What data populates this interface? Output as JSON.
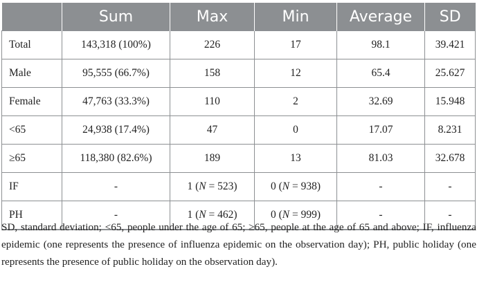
{
  "table": {
    "columns": [
      "",
      "Sum",
      "Max",
      "Min",
      "Average",
      "SD"
    ],
    "rows": [
      {
        "label": "Total",
        "sum": "143,318 (100%)",
        "max": "226",
        "min": "17",
        "average": "98.1",
        "sd": "39.421"
      },
      {
        "label": "Male",
        "sum": "95,555 (66.7%)",
        "max": "158",
        "min": "12",
        "average": "65.4",
        "sd": "25.627"
      },
      {
        "label": "Female",
        "sum": "47,763 (33.3%)",
        "max": "110",
        "min": "2",
        "average": "32.69",
        "sd": "15.948"
      },
      {
        "label": "<65",
        "sum": "24,938 (17.4%)",
        "max": "47",
        "min": "0",
        "average": "17.07",
        "sd": "8.231"
      },
      {
        "label": "≥65",
        "sum": "118,380 (82.6%)",
        "max": "189",
        "min": "13",
        "average": "81.03",
        "sd": "32.678"
      },
      {
        "label": "IF",
        "sum": "-",
        "max": {
          "value": "1",
          "n": "523"
        },
        "min": {
          "value": "0",
          "n": "938"
        },
        "average": "-",
        "sd": "-"
      },
      {
        "label": "PH",
        "sum": "-",
        "max": {
          "value": "1",
          "n": "462"
        },
        "min": {
          "value": "0",
          "n": "999"
        },
        "average": "-",
        "sd": "-"
      }
    ]
  },
  "n_symbol": "N",
  "footnote": "SD, standard deviation; <65, people under the age of 65; ≥65, people at the age of 65 and above; IF, influenza epidemic (one represents the presence of influenza epidemic on the observation day); PH, public holiday (one represents the presence of public holiday on the observation day)."
}
